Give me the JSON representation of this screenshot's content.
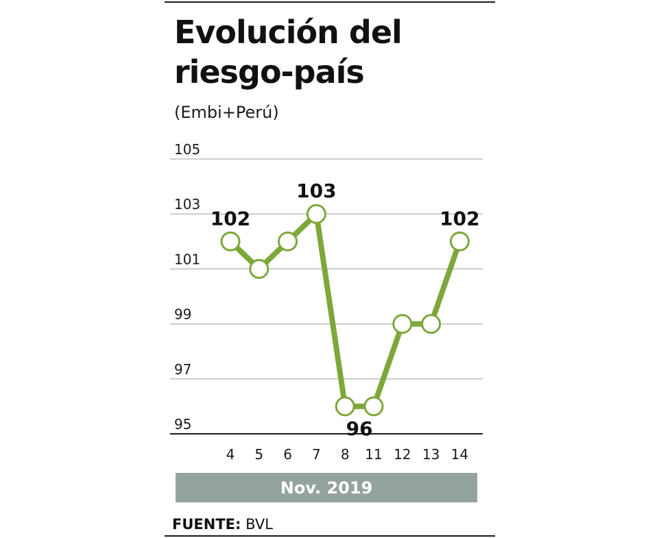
{
  "chart_data": {
    "type": "line",
    "title": "Evolución del riesgo-país",
    "subtitle": "(Embi+Perú)",
    "xlabel": "Nov. 2019",
    "ylabel": "",
    "categories": [
      "4",
      "5",
      "6",
      "7",
      "8",
      "11",
      "12",
      "13",
      "14"
    ],
    "series": [
      {
        "name": "Embi+Perú",
        "values": [
          102,
          101,
          102,
          103,
          96,
          96,
          99,
          99,
          102
        ],
        "color": "#7ea73a"
      }
    ],
    "ylim": [
      95,
      105
    ],
    "yticks": [
      105,
      103,
      101,
      99,
      97,
      95
    ],
    "grid": true,
    "annotations": [
      {
        "index": 0,
        "text": "102",
        "position": "above"
      },
      {
        "index": 3,
        "text": "103",
        "position": "above"
      },
      {
        "index": 4,
        "text": "96",
        "position": "below-between-4-5"
      },
      {
        "index": 8,
        "text": "102",
        "position": "above"
      }
    ],
    "source_label": "FUENTE:",
    "source": "BVL"
  },
  "colors": {
    "line": "#7ea73a",
    "grid": "#bdbdbd",
    "baseline": "#1a1a1a",
    "period_bar": "#94a3a0"
  }
}
